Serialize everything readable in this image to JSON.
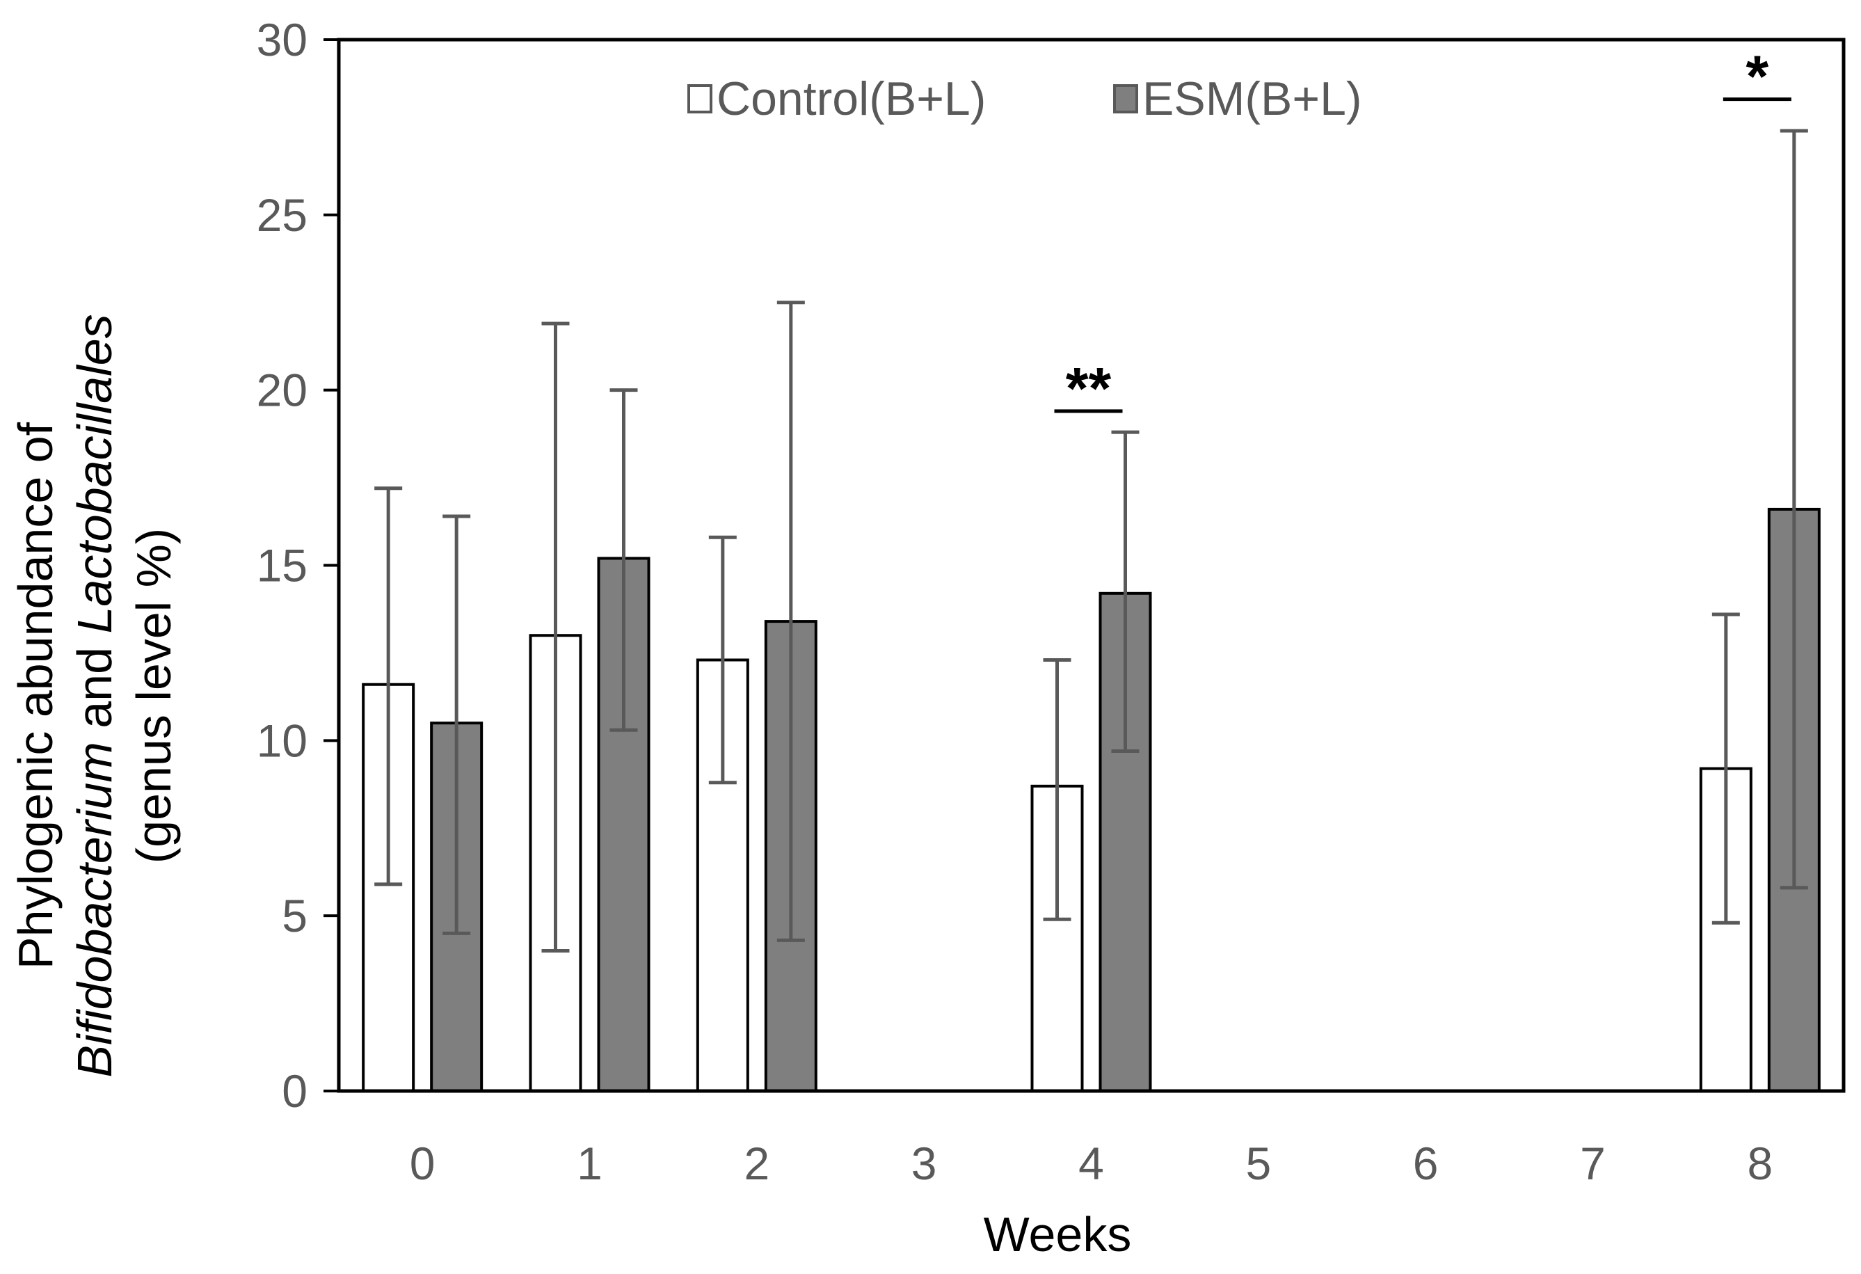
{
  "chart_data": {
    "type": "bar",
    "title": "",
    "xlabel": "Weeks",
    "ylabel": {
      "line1": "Phylogenic abundance of",
      "line2_italic_a": "Bifidobacterium",
      "line2_connector": " and ",
      "line2_italic_b": "Lactobacillales",
      "line3": "(genus level %)"
    },
    "categories": [
      "0",
      "1",
      "2",
      "3",
      "4",
      "5",
      "6",
      "7",
      "8"
    ],
    "ylim": [
      0,
      30
    ],
    "yticks": [
      0,
      5,
      10,
      15,
      20,
      25,
      30
    ],
    "grid": false,
    "legend_position": "top-center",
    "series": [
      {
        "name": "Control(B+L)",
        "fill": "#ffffff",
        "values": [
          11.6,
          13.0,
          12.3,
          null,
          8.7,
          null,
          null,
          null,
          9.2
        ],
        "error_upper": [
          17.2,
          21.9,
          15.8,
          null,
          12.3,
          null,
          null,
          null,
          13.6
        ],
        "error_lower": [
          5.9,
          4.0,
          8.8,
          null,
          4.9,
          null,
          null,
          null,
          4.8
        ]
      },
      {
        "name": "ESM(B+L)",
        "fill": "#7f7f7f",
        "values": [
          10.5,
          15.2,
          13.4,
          null,
          14.2,
          null,
          null,
          null,
          16.6
        ],
        "error_upper": [
          16.4,
          20.0,
          22.5,
          null,
          18.8,
          null,
          null,
          null,
          27.4
        ],
        "error_lower": [
          4.5,
          10.3,
          4.3,
          null,
          9.7,
          null,
          null,
          null,
          5.8
        ]
      }
    ],
    "significance": [
      {
        "category": "4",
        "label": "**",
        "level": 19.4
      },
      {
        "category": "8",
        "label": "*",
        "level": 28.3
      }
    ]
  },
  "colors": {
    "axis": "#000000",
    "error_bar": "#595959",
    "bar_edge": "#000000"
  }
}
